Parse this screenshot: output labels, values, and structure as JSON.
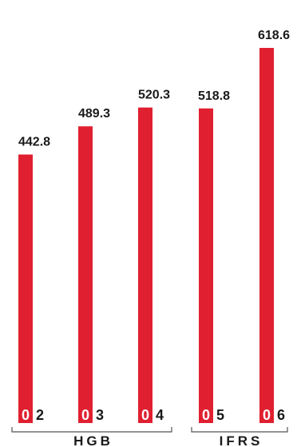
{
  "chart_data": {
    "type": "bar",
    "categories": [
      "02",
      "03",
      "04",
      "05",
      "06"
    ],
    "category_labels": [
      {
        "zero": "0",
        "digit": "2"
      },
      {
        "zero": "0",
        "digit": "3"
      },
      {
        "zero": "0",
        "digit": "4"
      },
      {
        "zero": "0",
        "digit": "5"
      },
      {
        "zero": "0",
        "digit": "6"
      }
    ],
    "values": [
      442.8,
      489.3,
      520.3,
      518.8,
      618.6
    ],
    "value_labels": [
      "442.8",
      "489.3",
      "520.3",
      "518.8",
      "618.6"
    ],
    "groups": [
      {
        "label": "HGB",
        "categories": [
          "02",
          "03",
          "04"
        ]
      },
      {
        "label": "IFRS",
        "categories": [
          "05",
          "06"
        ]
      }
    ],
    "ylim": [
      0,
      618.6
    ],
    "title": "",
    "xlabel": "",
    "ylabel": "",
    "grid": false,
    "colors": {
      "bar": "#e02030",
      "text": "#1a1a1a",
      "bracket": "#555555",
      "zero_text": "#ffffff"
    }
  }
}
